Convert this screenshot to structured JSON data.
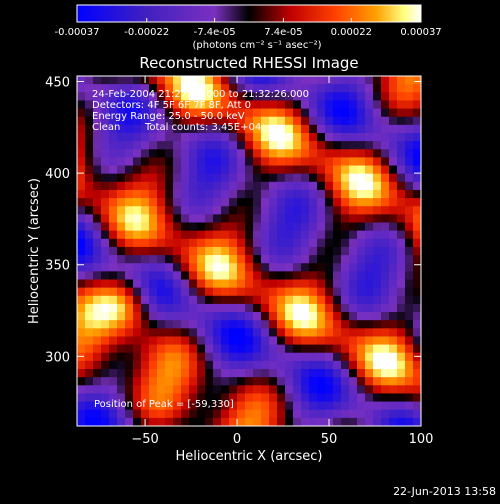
{
  "colorbar": {
    "tick_labels": [
      "-0.00037",
      "-0.00022",
      "-7.4e-05",
      "7.4e-05",
      "0.00022",
      "0.00037"
    ],
    "tick_values": [
      -0.00037,
      -0.00022,
      -7.4e-05,
      7.4e-05,
      0.00022,
      0.00037
    ],
    "range": [
      -0.00037,
      0.00037
    ],
    "unit_label": "(photons cm⁻² s⁻¹ asec⁻²)"
  },
  "chart_data": {
    "type": "heatmap",
    "title": "Reconstructed RHESSI Image",
    "xlabel": "Heliocentric X (arcsec)",
    "ylabel": "Heliocentric Y (arcsec)",
    "xlim": [
      -87,
      100
    ],
    "ylim": [
      262,
      453
    ],
    "x_ticks": [
      -50,
      0,
      50,
      100
    ],
    "y_ticks": [
      300,
      350,
      400,
      450
    ],
    "peak": {
      "x": -59,
      "y": 330
    },
    "colormap": [
      "#0000ff",
      "#4020c0",
      "#7a30c0",
      "#000000",
      "#c00000",
      "#ff4000",
      "#ffa000",
      "#ffff80",
      "#ffffff"
    ]
  },
  "annotations": {
    "time_range": "24-Feb-2004 21:27:48.000 to 21:32:26.000",
    "detectors": "Detectors: 4F 5F 6F 7F 8F, Att 0",
    "energy_range": "Energy Range: 25.0 - 50.0 keV",
    "clean": "Clean",
    "total_counts": "Total counts: 3.45E+04",
    "peak_position": "Position of Peak = [-59,330]"
  },
  "footer": {
    "date": "22-Jun-2013 13:58"
  }
}
